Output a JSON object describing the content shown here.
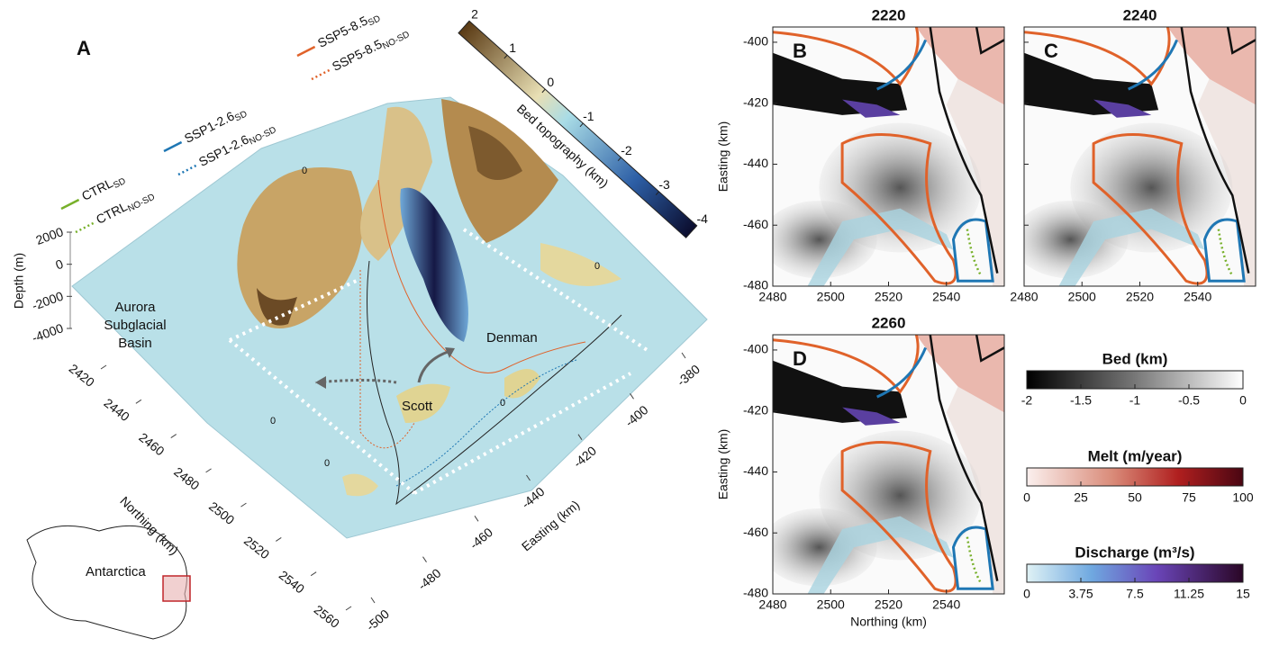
{
  "panel_a": {
    "letter": "A",
    "legend": [
      {
        "name": "CTRL",
        "sub": "SD",
        "color": "#77b02a",
        "dash": false
      },
      {
        "name": "CTRL",
        "sub": "NO-SD",
        "color": "#77b02a",
        "dash": true
      },
      {
        "name": "SSP1-2.6",
        "sub": "SD",
        "color": "#1f77b4",
        "dash": false
      },
      {
        "name": "SSP1-2.6",
        "sub": "NO-SD",
        "color": "#1f77b4",
        "dash": true
      },
      {
        "name": "SSP5-8.5",
        "sub": "SD",
        "color": "#e0622a",
        "dash": false
      },
      {
        "name": "SSP5-8.5",
        "sub": "NO-SD",
        "color": "#e0622a",
        "dash": true
      }
    ],
    "colorbar": {
      "label": "Bed topography (km)",
      "lim": [
        -4,
        2
      ],
      "ticks": [
        2,
        1,
        0,
        -1,
        -2,
        -3,
        -4
      ]
    },
    "depth_axis": {
      "label": "Depth (m)",
      "lim": [
        -4000,
        2000
      ],
      "ticks": [
        2000,
        0,
        -2000,
        -4000
      ]
    },
    "northing_axis": {
      "label": "Northing (km)",
      "lim": [
        2420,
        2560
      ],
      "ticks": [
        2420,
        2440,
        2460,
        2480,
        2500,
        2520,
        2540,
        2560
      ]
    },
    "easting_axis": {
      "label": "Easting (km)",
      "lim": [
        -500,
        -380
      ],
      "ticks": [
        -500,
        -480,
        -460,
        -440,
        -420,
        -400,
        -380
      ]
    },
    "annotations": {
      "basin": [
        "Aurora",
        "Subglacial",
        "Basin"
      ],
      "denman": "Denman",
      "scott": "Scott",
      "contours": [
        "0",
        "0",
        "0",
        "0",
        "0"
      ]
    },
    "inset": {
      "label": "Antarctica"
    }
  },
  "map_panels": [
    {
      "letter": "B",
      "title": "2220"
    },
    {
      "letter": "C",
      "title": "2240"
    },
    {
      "letter": "D",
      "title": "2260"
    }
  ],
  "map_axes": {
    "xlabel": "Northing (km)",
    "ylabel": "Easting (km)",
    "xlim": [
      2480,
      2560
    ],
    "ylim": [
      -480,
      -395
    ],
    "xticks": [
      2480,
      2500,
      2520,
      2540
    ],
    "yticks": [
      -400,
      -420,
      -440,
      -460,
      -480
    ]
  },
  "colorbars": [
    {
      "title": "Bed (km)",
      "lim": [
        -2,
        0
      ],
      "ticks": [
        -2,
        -1.5,
        -1,
        -0.5,
        0
      ]
    },
    {
      "title": "Melt (m/year)",
      "lim": [
        0,
        100
      ],
      "ticks": [
        0,
        25,
        50,
        75,
        100
      ]
    },
    {
      "title": "Discharge (m³/s)",
      "lim": [
        0,
        15
      ],
      "ticks": [
        0,
        3.75,
        7.5,
        11.25,
        15
      ]
    }
  ]
}
